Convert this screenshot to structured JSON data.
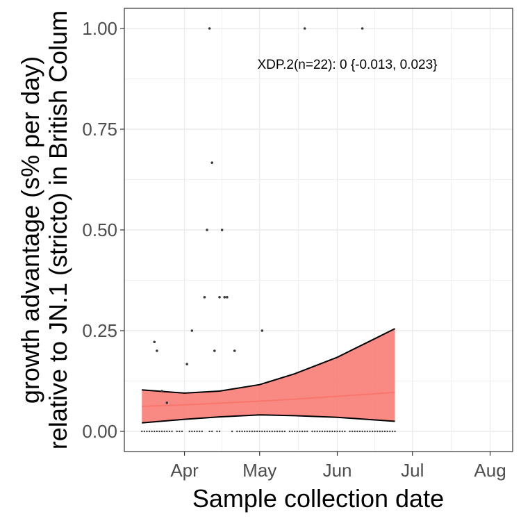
{
  "chart_data": {
    "type": "scatter",
    "xlabel": "Sample collection date",
    "ylabel_lines": [
      "growth advantage (s% per day)",
      "relative to JN.1 (stricto) in British Colum"
    ],
    "annotation": "XDP.2(n=22): 0 {-0.013, 0.023}",
    "x_ticks": [
      {
        "date": "2024-04-01",
        "label": "Apr"
      },
      {
        "date": "2024-05-01",
        "label": "May"
      },
      {
        "date": "2024-06-01",
        "label": "Jun"
      },
      {
        "date": "2024-07-01",
        "label": "Jul"
      },
      {
        "date": "2024-08-01",
        "label": "Aug"
      }
    ],
    "y_ticks": [
      0,
      0.25,
      0.5,
      0.75,
      1
    ],
    "y_tick_labels": [
      "0.00",
      "0.25",
      "0.50",
      "0.75",
      "1.00"
    ],
    "xlim": [
      "2024-03-08",
      "2024-08-10"
    ],
    "ylim": [
      -0.05,
      1.05
    ],
    "grid": true,
    "colors": {
      "ribbon": "#f8766d",
      "ribbon_opacity": 0.85,
      "fit_line": "#f8766d",
      "bounds": "#000000",
      "points": "#3a3a3a",
      "grid": "#ebebeb",
      "panel_border": "#333333"
    },
    "fit": {
      "x": [
        "2024-03-15",
        "2024-04-01",
        "2024-04-15",
        "2024-05-01",
        "2024-05-15",
        "2024-06-01",
        "2024-06-15",
        "2024-06-24"
      ],
      "mean": [
        0.062,
        0.066,
        0.07,
        0.075,
        0.08,
        0.087,
        0.093,
        0.097
      ],
      "lower": [
        0.021,
        0.03,
        0.036,
        0.041,
        0.039,
        0.035,
        0.029,
        0.025
      ],
      "upper": [
        0.103,
        0.095,
        0.1,
        0.116,
        0.143,
        0.184,
        0.227,
        0.255
      ]
    },
    "points": [
      {
        "x": "2024-04-11",
        "y": 1.0
      },
      {
        "x": "2024-05-19",
        "y": 1.0
      },
      {
        "x": "2024-06-11",
        "y": 1.0
      },
      {
        "x": "2024-04-12",
        "y": 0.667
      },
      {
        "x": "2024-04-10",
        "y": 0.5
      },
      {
        "x": "2024-04-16",
        "y": 0.5
      },
      {
        "x": "2024-04-09",
        "y": 0.333
      },
      {
        "x": "2024-04-15",
        "y": 0.333
      },
      {
        "x": "2024-04-17",
        "y": 0.333
      },
      {
        "x": "2024-04-18",
        "y": 0.333
      },
      {
        "x": "2024-04-04",
        "y": 0.25
      },
      {
        "x": "2024-05-02",
        "y": 0.25
      },
      {
        "x": "2024-03-20",
        "y": 0.222
      },
      {
        "x": "2024-03-21",
        "y": 0.2
      },
      {
        "x": "2024-04-13",
        "y": 0.2
      },
      {
        "x": "2024-04-21",
        "y": 0.2
      },
      {
        "x": "2024-04-02",
        "y": 0.167
      },
      {
        "x": "2024-03-23",
        "y": 0.1
      },
      {
        "x": "2024-03-25",
        "y": 0.071
      }
    ],
    "zero_point_ranges": [
      [
        "2024-03-15",
        "2024-03-27"
      ],
      [
        "2024-03-29",
        "2024-03-31"
      ],
      [
        "2024-04-03",
        "2024-04-08"
      ],
      [
        "2024-04-11",
        "2024-04-12"
      ],
      [
        "2024-04-14",
        "2024-04-15"
      ],
      [
        "2024-04-20",
        "2024-04-20"
      ],
      [
        "2024-04-22",
        "2024-05-11"
      ],
      [
        "2024-05-13",
        "2024-05-20"
      ],
      [
        "2024-05-22",
        "2024-06-04"
      ],
      [
        "2024-06-06",
        "2024-06-24"
      ]
    ]
  }
}
